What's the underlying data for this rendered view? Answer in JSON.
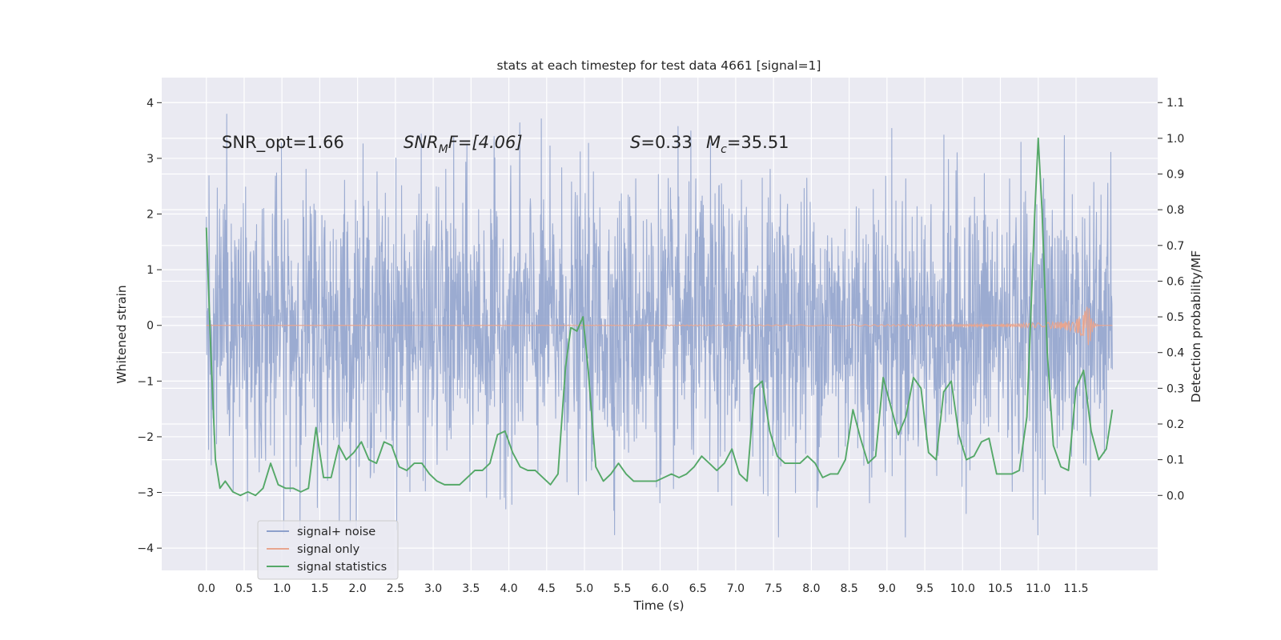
{
  "chart_data": {
    "type": "line",
    "title": "stats at each timestep for test data 4661 [signal=1]",
    "xlabel": "Time (s)",
    "ylabel_left": "Whitened strain",
    "ylabel_right": "Detection probability/MF",
    "xlim": [
      -0.59,
      12.58
    ],
    "ylim_left": [
      -4.4,
      4.45
    ],
    "ylim_right": [
      -0.21,
      1.17
    ],
    "x_ticks": [
      0.0,
      0.5,
      1.0,
      1.5,
      2.0,
      2.5,
      3.0,
      3.5,
      4.0,
      4.5,
      5.0,
      5.5,
      6.0,
      6.5,
      7.0,
      7.5,
      8.0,
      8.5,
      9.0,
      9.5,
      10.0,
      10.5,
      11.0,
      11.5
    ],
    "x_tick_labels": [
      "0.0",
      "0.5",
      "1.0",
      "1.5",
      "2.0",
      "2.5",
      "3.0",
      "3.5",
      "4.0",
      "4.5",
      "5.0",
      "5.5",
      "6.0",
      "6.5",
      "7.0",
      "7.5",
      "8.0",
      "8.5",
      "9.0",
      "9.5",
      "10.0",
      "10.5",
      "11.0",
      "11.5"
    ],
    "y_left_ticks": [
      -4,
      -3,
      -2,
      -1,
      0,
      1,
      2,
      3,
      4
    ],
    "y_left_tick_labels": [
      "−4",
      "−3",
      "−2",
      "−1",
      "0",
      "1",
      "2",
      "3",
      "4"
    ],
    "y_right_ticks": [
      0.0,
      0.1,
      0.2,
      0.3,
      0.4,
      0.5,
      0.6,
      0.7,
      0.8,
      0.9,
      1.0,
      1.1
    ],
    "y_right_tick_labels": [
      "0.0",
      "0.1",
      "0.2",
      "0.3",
      "0.4",
      "0.5",
      "0.6",
      "0.7",
      "0.8",
      "0.9",
      "1.0",
      "1.1"
    ],
    "grid": true,
    "legend_position": "lower-left",
    "annotations": {
      "snr_opt": "SNR_opt=1.66",
      "snr_mf_main": "SNR",
      "snr_mf_sub": "M",
      "snr_mf_rest": "F=[4.06]",
      "s_sym": "S",
      "s_value": "=0.33",
      "mc_sym": "M",
      "mc_sub": "c",
      "mc_value": "=35.51"
    },
    "series": [
      {
        "name": "signal+ noise",
        "axis": "left",
        "color": "#8da0cb",
        "description_type": "whitened noisy strain, range about -3.8 to 4.1",
        "t_start": 0.0,
        "t_end": 11.98
      },
      {
        "name": "signal only",
        "axis": "left",
        "color": "#e8a58f",
        "chirp_end_time": 11.67,
        "chirp_peak_amplitude": 0.5
      },
      {
        "name": "signal statistics",
        "axis": "right",
        "color": "#55a868",
        "x": [
          0.0,
          0.06,
          0.12,
          0.18,
          0.25,
          0.35,
          0.45,
          0.55,
          0.65,
          0.75,
          0.85,
          0.95,
          1.05,
          1.15,
          1.25,
          1.35,
          1.45,
          1.55,
          1.65,
          1.75,
          1.85,
          1.95,
          2.05,
          2.15,
          2.25,
          2.35,
          2.45,
          2.55,
          2.65,
          2.75,
          2.85,
          2.95,
          3.05,
          3.15,
          3.25,
          3.35,
          3.45,
          3.55,
          3.65,
          3.75,
          3.85,
          3.95,
          4.05,
          4.15,
          4.25,
          4.35,
          4.45,
          4.55,
          4.65,
          4.75,
          4.82,
          4.9,
          4.98,
          5.05,
          5.15,
          5.25,
          5.35,
          5.45,
          5.55,
          5.65,
          5.75,
          5.85,
          5.95,
          6.05,
          6.15,
          6.25,
          6.35,
          6.45,
          6.55,
          6.65,
          6.75,
          6.85,
          6.95,
          7.05,
          7.15,
          7.25,
          7.35,
          7.45,
          7.55,
          7.65,
          7.75,
          7.85,
          7.95,
          8.05,
          8.15,
          8.25,
          8.35,
          8.45,
          8.55,
          8.65,
          8.75,
          8.85,
          8.95,
          9.05,
          9.15,
          9.25,
          9.35,
          9.45,
          9.55,
          9.65,
          9.75,
          9.85,
          9.95,
          10.05,
          10.15,
          10.25,
          10.35,
          10.45,
          10.55,
          10.65,
          10.75,
          10.85,
          10.95,
          11.0,
          11.05,
          11.12,
          11.2,
          11.3,
          11.4,
          11.5,
          11.6,
          11.7,
          11.8,
          11.9,
          11.98
        ],
        "y": [
          0.75,
          0.4,
          0.1,
          0.02,
          0.04,
          0.01,
          0.0,
          0.01,
          0.0,
          0.02,
          0.09,
          0.03,
          0.02,
          0.02,
          0.01,
          0.02,
          0.19,
          0.05,
          0.05,
          0.14,
          0.1,
          0.12,
          0.15,
          0.1,
          0.09,
          0.15,
          0.14,
          0.08,
          0.07,
          0.09,
          0.09,
          0.06,
          0.04,
          0.03,
          0.03,
          0.03,
          0.05,
          0.07,
          0.07,
          0.09,
          0.17,
          0.18,
          0.12,
          0.08,
          0.07,
          0.07,
          0.05,
          0.03,
          0.06,
          0.36,
          0.47,
          0.46,
          0.5,
          0.35,
          0.08,
          0.04,
          0.06,
          0.09,
          0.06,
          0.04,
          0.04,
          0.04,
          0.04,
          0.05,
          0.06,
          0.05,
          0.06,
          0.08,
          0.11,
          0.09,
          0.07,
          0.09,
          0.13,
          0.06,
          0.04,
          0.3,
          0.32,
          0.18,
          0.11,
          0.09,
          0.09,
          0.09,
          0.11,
          0.09,
          0.05,
          0.06,
          0.06,
          0.1,
          0.24,
          0.16,
          0.09,
          0.11,
          0.33,
          0.25,
          0.17,
          0.22,
          0.33,
          0.3,
          0.12,
          0.1,
          0.29,
          0.32,
          0.17,
          0.1,
          0.11,
          0.15,
          0.16,
          0.06,
          0.06,
          0.06,
          0.07,
          0.22,
          0.77,
          1.0,
          0.8,
          0.4,
          0.14,
          0.08,
          0.07,
          0.3,
          0.35,
          0.18,
          0.1,
          0.13,
          0.24
        ]
      }
    ]
  }
}
